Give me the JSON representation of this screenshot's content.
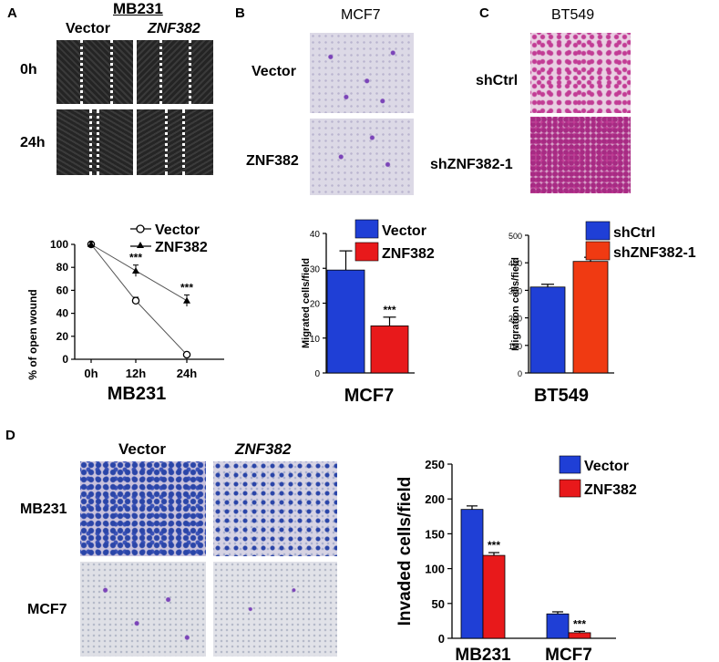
{
  "panel_letters": [
    "A",
    "B",
    "C",
    "D"
  ],
  "panelA": {
    "title": "MB231",
    "col_labels": [
      "Vector",
      "ZNF382"
    ],
    "row_labels": [
      "0h",
      "24h"
    ]
  },
  "panelB": {
    "title": "MCF7",
    "row_labels": [
      "Vector",
      "ZNF382"
    ]
  },
  "panelC": {
    "title": "BT549",
    "row_labels": [
      "shCtrl",
      "shZNF382-1"
    ]
  },
  "panelD": {
    "col_labels": [
      "Vector",
      "ZNF382"
    ],
    "row_labels": [
      "MB231",
      "MCF7"
    ]
  },
  "colors": {
    "vector": "#1f3fd6",
    "znf": "#e8191b",
    "shznf": "#f03a12",
    "crystal_violet": "#6a2fa8",
    "he": "#c0338f"
  },
  "chart_data": [
    {
      "id": "A",
      "type": "line",
      "categories": [
        "0h",
        "12h",
        "24h"
      ],
      "series": [
        {
          "name": "Vector",
          "values": [
            100,
            51,
            4
          ],
          "errors": [
            2,
            3,
            2
          ],
          "marker": "open-circle"
        },
        {
          "name": "ZNF382",
          "values": [
            100,
            77,
            51
          ],
          "errors": [
            2,
            5,
            5
          ],
          "marker": "filled-triangle"
        }
      ],
      "annotations": [
        {
          "category": "12h",
          "text": "***"
        },
        {
          "category": "24h",
          "text": "***"
        }
      ],
      "ylabel": "% of open wound",
      "xlabel": "MB231",
      "ylim": [
        0,
        100
      ],
      "yticks": [
        "0",
        "20",
        "40",
        "60",
        "80",
        "100"
      ],
      "legend": "top-right"
    },
    {
      "id": "B",
      "type": "bar",
      "categories": [
        "Vector",
        "ZNF382"
      ],
      "values": [
        29.5,
        13.5
      ],
      "errors": [
        5.5,
        2.5
      ],
      "annotations": [
        {
          "category": "ZNF382",
          "text": "***"
        }
      ],
      "ylabel": "Migrated cells/field",
      "xlabel": "MCF7",
      "ylim": [
        0,
        40
      ],
      "yticks": [
        "0",
        "10",
        "20",
        "30",
        "40"
      ],
      "legend": "top-right"
    },
    {
      "id": "C",
      "type": "bar",
      "categories": [
        "shCtrl",
        "shZNF382-1"
      ],
      "values": [
        312,
        405
      ],
      "errors": [
        10,
        15
      ],
      "annotations": [
        {
          "category": "shZNF382-1",
          "text": "**"
        }
      ],
      "ylabel": "Migration cells/field",
      "xlabel": "BT549",
      "ylim": [
        0,
        500
      ],
      "yticks": [
        "0",
        "100",
        "200",
        "300",
        "400",
        "500"
      ],
      "legend": "top-right"
    },
    {
      "id": "D",
      "type": "bar",
      "categories": [
        "MB231",
        "MCF7"
      ],
      "series": [
        {
          "name": "Vector",
          "values": [
            185,
            35
          ],
          "errors": [
            5,
            3
          ]
        },
        {
          "name": "ZNF382",
          "values": [
            119,
            8
          ],
          "errors": [
            4,
            2
          ]
        }
      ],
      "annotations": [
        {
          "category": "MB231",
          "series": "ZNF382",
          "text": "***"
        },
        {
          "category": "MCF7",
          "series": "ZNF382",
          "text": "***"
        }
      ],
      "ylabel": "Invaded cells/field",
      "ylim": [
        0,
        250
      ],
      "yticks": [
        "0",
        "50",
        "100",
        "150",
        "200",
        "250"
      ],
      "legend": "top-right"
    }
  ]
}
